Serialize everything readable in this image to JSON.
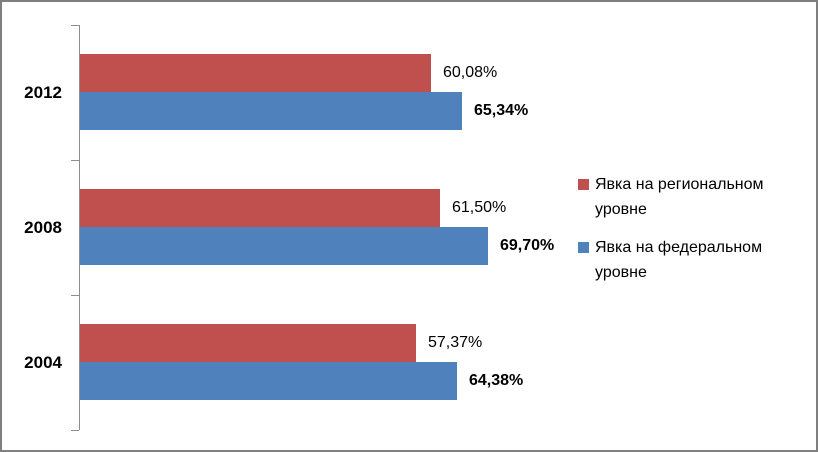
{
  "chart_data": {
    "type": "bar",
    "orientation": "horizontal",
    "title": "",
    "xlabel": "",
    "ylabel": "",
    "categories": [
      "2012",
      "2008",
      "2004"
    ],
    "series": [
      {
        "name": "Явка на региональном уровне",
        "color": "#C0504D",
        "values": [
          60.08,
          61.5,
          57.37
        ],
        "value_labels": [
          "60,08%",
          "61,50%",
          "57,37%"
        ],
        "label_bold": false
      },
      {
        "name": "Явка на федеральном уровне",
        "color": "#4F81BD",
        "values": [
          65.34,
          69.7,
          64.38
        ],
        "value_labels": [
          "65,34%",
          "69,70%",
          "64,38%"
        ],
        "label_bold": true
      }
    ],
    "xlim": [
      0,
      80
    ],
    "x_axis_labels_visible": false,
    "grid": false,
    "legend_position": "right",
    "data_labels": true
  },
  "legend": {
    "items": [
      {
        "label": "Явка на региональном уровне",
        "color": "#C0504D"
      },
      {
        "label": "Явка на федеральном уровне",
        "color": "#4F81BD"
      }
    ]
  },
  "colors": {
    "series_regional": "#C0504D",
    "series_federal": "#4F81BD",
    "axis": "#8C8C8C",
    "frame_border": "#7F7F7F",
    "background": "#FFFFFF",
    "text": "#000000"
  }
}
